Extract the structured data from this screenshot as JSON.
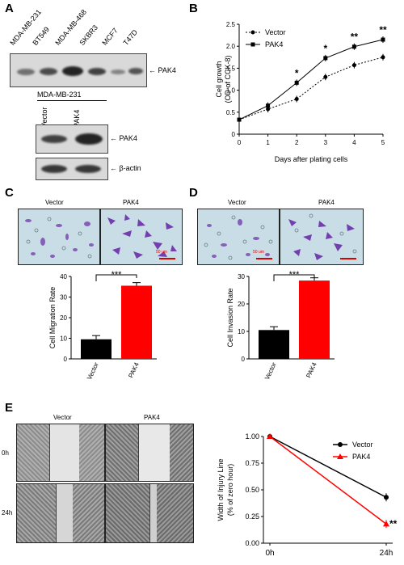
{
  "panels": {
    "A": "A",
    "B": "B",
    "C": "C",
    "D": "D",
    "E": "E"
  },
  "panelA": {
    "cell_lines": [
      "MDA-MB-231",
      "BT549",
      "MDA-MB-468",
      "SKBR3",
      "MCF7",
      "T47D"
    ],
    "top_blot_label": "← PAK4",
    "sub_title": "MDA-MB-231",
    "sub_lanes": [
      "Vector",
      "PAK4"
    ],
    "pak4_label": "← PAK4",
    "actin_label": "← β-actin"
  },
  "panelB": {
    "chart_data": {
      "type": "line",
      "x": [
        0,
        1,
        2,
        3,
        4,
        5
      ],
      "series": [
        {
          "name": "Vector",
          "values": [
            0.33,
            0.57,
            0.8,
            1.3,
            1.57,
            1.75
          ],
          "marker": "circle"
        },
        {
          "name": "PAK4",
          "values": [
            0.33,
            0.65,
            1.17,
            1.73,
            1.99,
            2.15
          ],
          "marker": "square"
        }
      ],
      "xlabel": "Days after plating cells",
      "ylabel_line1": "Cell growth",
      "ylabel_line2": "(OD of CCK-8)",
      "ylim": [
        0,
        2.5
      ],
      "yticks": [
        "0",
        "0.5",
        "1.0",
        "1.5",
        "2.0",
        "2.5"
      ],
      "xticks": [
        "0",
        "1",
        "2",
        "3",
        "4",
        "5"
      ],
      "significance": [
        {
          "x": 2,
          "label": "*"
        },
        {
          "x": 3,
          "label": "*"
        },
        {
          "x": 4,
          "label": "**"
        },
        {
          "x": 5,
          "label": "**"
        }
      ],
      "legend": "top-left"
    }
  },
  "panelC": {
    "img_labels": [
      "Vector",
      "PAK4"
    ],
    "scale_bar": "50 um",
    "chart_data": {
      "type": "bar",
      "categories": [
        "Vector",
        "PAK4"
      ],
      "values": [
        9.5,
        35.5
      ],
      "errors": [
        1.8,
        1.5
      ],
      "colors": [
        "#000000",
        "#ff0000"
      ],
      "ylabel": "Cell Migration Rate",
      "ylim": [
        0,
        40
      ],
      "yticks": [
        "0",
        "10",
        "20",
        "30",
        "40"
      ],
      "significance": "***"
    }
  },
  "panelD": {
    "img_labels": [
      "Vector",
      "PAK4"
    ],
    "scale_bar": "50 um",
    "chart_data": {
      "type": "bar",
      "categories": [
        "Vector",
        "PAK4"
      ],
      "values": [
        10.5,
        28.5
      ],
      "errors": [
        1.2,
        1.0
      ],
      "colors": [
        "#000000",
        "#ff0000"
      ],
      "ylabel": "Cell Invasion Rate",
      "ylim": [
        0,
        30
      ],
      "yticks": [
        "0",
        "10",
        "20",
        "30"
      ],
      "significance": "***"
    }
  },
  "panelE": {
    "col_labels": [
      "Vector",
      "PAK4"
    ],
    "row_labels": [
      "0h",
      "24h"
    ],
    "chart_data": {
      "type": "line",
      "categories": [
        "0h",
        "24h"
      ],
      "series": [
        {
          "name": "Vector",
          "values": [
            1.0,
            0.43
          ],
          "color": "#000000",
          "marker": "circle"
        },
        {
          "name": "PAK4",
          "values": [
            1.0,
            0.18
          ],
          "color": "#ff0000",
          "marker": "triangle"
        }
      ],
      "ylabel_line1": "Width of Injury Line",
      "ylabel_line2": "(% of zero hour)",
      "ylim": [
        0,
        1.0
      ],
      "yticks": [
        "0.00",
        "0.25",
        "0.50",
        "0.75",
        "1.00"
      ],
      "significance": "**",
      "legend": "top-right"
    }
  }
}
